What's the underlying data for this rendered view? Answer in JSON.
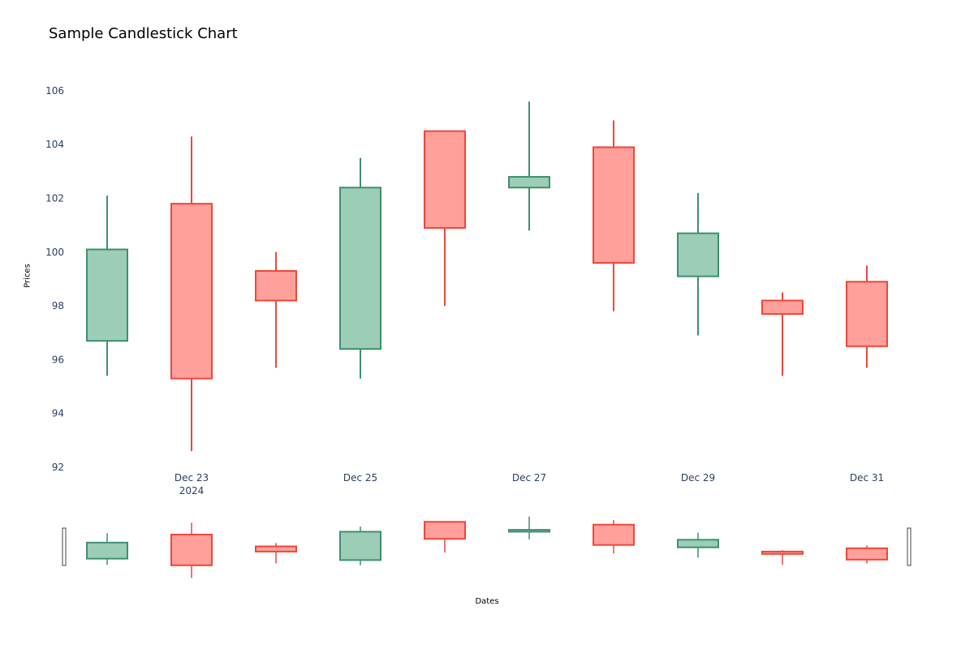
{
  "chart_data": {
    "type": "candlestick",
    "title": "Sample Candlestick Chart",
    "xlabel": "Dates",
    "ylabel": "Prices",
    "ylim": [
      92,
      106.6
    ],
    "yticks": [
      "92",
      "94",
      "96",
      "98",
      "100",
      "102",
      "104",
      "106"
    ],
    "xticks": [
      {
        "date": "2024-12-23",
        "label": "Dec 23",
        "sublabel": "2024"
      },
      {
        "date": "2024-12-25",
        "label": "Dec 25",
        "sublabel": ""
      },
      {
        "date": "2024-12-27",
        "label": "Dec 27",
        "sublabel": ""
      },
      {
        "date": "2024-12-29",
        "label": "Dec 29",
        "sublabel": ""
      },
      {
        "date": "2024-12-31",
        "label": "Dec 31",
        "sublabel": ""
      }
    ],
    "candles": [
      {
        "date": "2024-12-22",
        "open": 96.7,
        "high": 102.1,
        "low": 95.4,
        "close": 100.1
      },
      {
        "date": "2024-12-23",
        "open": 101.8,
        "high": 104.3,
        "low": 92.6,
        "close": 95.3
      },
      {
        "date": "2024-12-24",
        "open": 99.3,
        "high": 100.0,
        "low": 95.7,
        "close": 98.2
      },
      {
        "date": "2024-12-25",
        "open": 96.4,
        "high": 103.5,
        "low": 95.3,
        "close": 102.4
      },
      {
        "date": "2024-12-26",
        "open": 104.5,
        "high": 104.5,
        "low": 98.0,
        "close": 100.9
      },
      {
        "date": "2024-12-27",
        "open": 102.4,
        "high": 105.6,
        "low": 100.8,
        "close": 102.8
      },
      {
        "date": "2024-12-28",
        "open": 103.9,
        "high": 104.9,
        "low": 97.8,
        "close": 99.6
      },
      {
        "date": "2024-12-29",
        "open": 99.1,
        "high": 102.2,
        "low": 96.9,
        "close": 100.7
      },
      {
        "date": "2024-12-30",
        "open": 98.2,
        "high": 98.5,
        "low": 95.4,
        "close": 97.7
      },
      {
        "date": "2024-12-31",
        "open": 98.9,
        "high": 99.5,
        "low": 95.7,
        "close": 96.5
      }
    ],
    "colors": {
      "increasing_line": "#3d9070",
      "increasing_fill": "#9ccdb6",
      "decreasing_line": "#f0463a",
      "decreasing_fill": "#ffa09a",
      "tick_text": "#2a3f5f"
    },
    "grid": false,
    "rangeslider": true
  }
}
